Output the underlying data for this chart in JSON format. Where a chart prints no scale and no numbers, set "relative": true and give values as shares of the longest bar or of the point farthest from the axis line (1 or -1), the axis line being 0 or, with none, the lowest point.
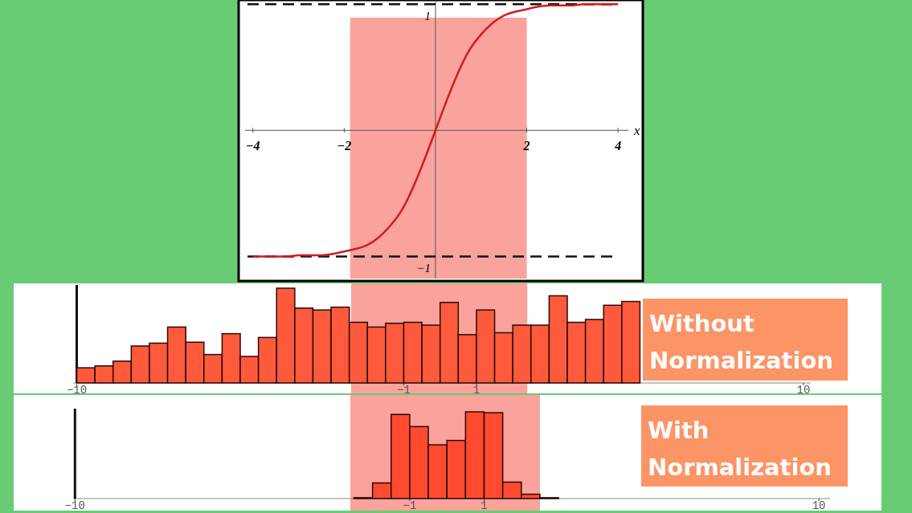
{
  "chart_data": [
    {
      "type": "line",
      "xlabel": "x",
      "xlim": [
        -4.26,
        4.49
      ],
      "ylim": [
        -1.175,
        1.02
      ],
      "xticks": [
        {
          "value": -4,
          "label": "−4"
        },
        {
          "value": -2,
          "label": "−2"
        },
        2,
        4
      ],
      "yticks": [
        1,
        {
          "value": -1,
          "label": "−1"
        }
      ],
      "x": [
        -4,
        -3.75,
        -3.5,
        -3.25,
        -3,
        -2.75,
        -2.5,
        -2.25,
        -2,
        -1.75,
        -1.5,
        -1.25,
        -1,
        -0.75,
        -0.5,
        -0.25,
        0,
        0.25,
        0.5,
        0.75,
        1,
        1.25,
        1.5,
        1.75,
        2,
        2.25,
        2.5,
        2.75,
        3,
        3.25,
        3.5,
        3.75,
        4
      ],
      "series": [
        {
          "color": "#d41a1a",
          "values": [
            -1.0,
            -1.0,
            -1.0,
            -1.0,
            -0.99,
            -0.99,
            -0.99,
            -0.98,
            -0.96,
            -0.94,
            -0.91,
            -0.85,
            -0.76,
            -0.64,
            -0.46,
            -0.24,
            0,
            0.24,
            0.46,
            0.64,
            0.76,
            0.85,
            0.91,
            0.94,
            0.96,
            0.98,
            0.99,
            0.99,
            0.99,
            1.0,
            1.0,
            1.0,
            1.0
          ]
        }
      ],
      "ref_lines": [
        {
          "axis": "y",
          "value": 1,
          "color": "#111111",
          "line_style": "dashed"
        },
        {
          "axis": "y",
          "value": -1,
          "color": "#111111",
          "line_style": "dashed"
        }
      ],
      "bands": [
        {
          "axis": "x",
          "from": -1.87,
          "to": 2.0,
          "color": "#f9a39c"
        }
      ]
    },
    {
      "type": "bar",
      "relative": true,
      "xlim": [
        -10.1,
        10.2
      ],
      "xticks": [
        {
          "value": -10,
          "label": "−10"
        },
        {
          "value": -1,
          "label": "−1"
        },
        1,
        10
      ],
      "x": [
        -9.75,
        -9.25,
        -8.75,
        -8.25,
        -7.75,
        -7.25,
        -6.75,
        -6.25,
        -5.75,
        -5.25,
        -4.75,
        -4.25,
        -3.75,
        -3.25,
        -2.75,
        -2.25,
        -1.75,
        -1.25,
        -0.75,
        -0.25,
        0.25,
        0.75,
        1.25,
        1.75,
        2.25,
        2.75,
        3.25,
        3.75,
        4.25,
        4.75,
        5.25
      ],
      "values": [
        0.16,
        0.18,
        0.23,
        0.39,
        0.42,
        0.59,
        0.43,
        0.3,
        0.52,
        0.28,
        0.48,
        1,
        0.79,
        0.77,
        0.8,
        0.64,
        0.59,
        0.63,
        0.64,
        0.61,
        0.85,
        0.51,
        0.77,
        0.53,
        0.61,
        0.61,
        0.92,
        0.64,
        0.67,
        0.82,
        0.86
      ],
      "color": "#ff5a3c",
      "bands": [
        {
          "axis": "x",
          "from": -2.45,
          "to": 2.4,
          "color": "#f9a39c"
        }
      ],
      "annotations": [
        "Without Normalization"
      ]
    },
    {
      "type": "bar",
      "relative": true,
      "xlim": [
        -10.05,
        10.3
      ],
      "xticks": [
        {
          "value": -10,
          "label": "−10"
        },
        {
          "value": -1,
          "label": "−1"
        },
        1,
        10
      ],
      "x": [
        -2.25,
        -1.75,
        -1.25,
        -0.75,
        -0.25,
        0.25,
        0.75,
        1.25,
        1.75,
        2.25,
        2.75
      ],
      "values": [
        0.01,
        0.18,
        0.97,
        0.83,
        0.62,
        0.67,
        1,
        0.99,
        0.19,
        0.05,
        0.01
      ],
      "color": "#ff4a30",
      "bands": [
        {
          "axis": "x",
          "from": -2.6,
          "to": 2.5,
          "color": "#f9a39c"
        }
      ],
      "annotations": [
        "With Normalization"
      ]
    }
  ]
}
